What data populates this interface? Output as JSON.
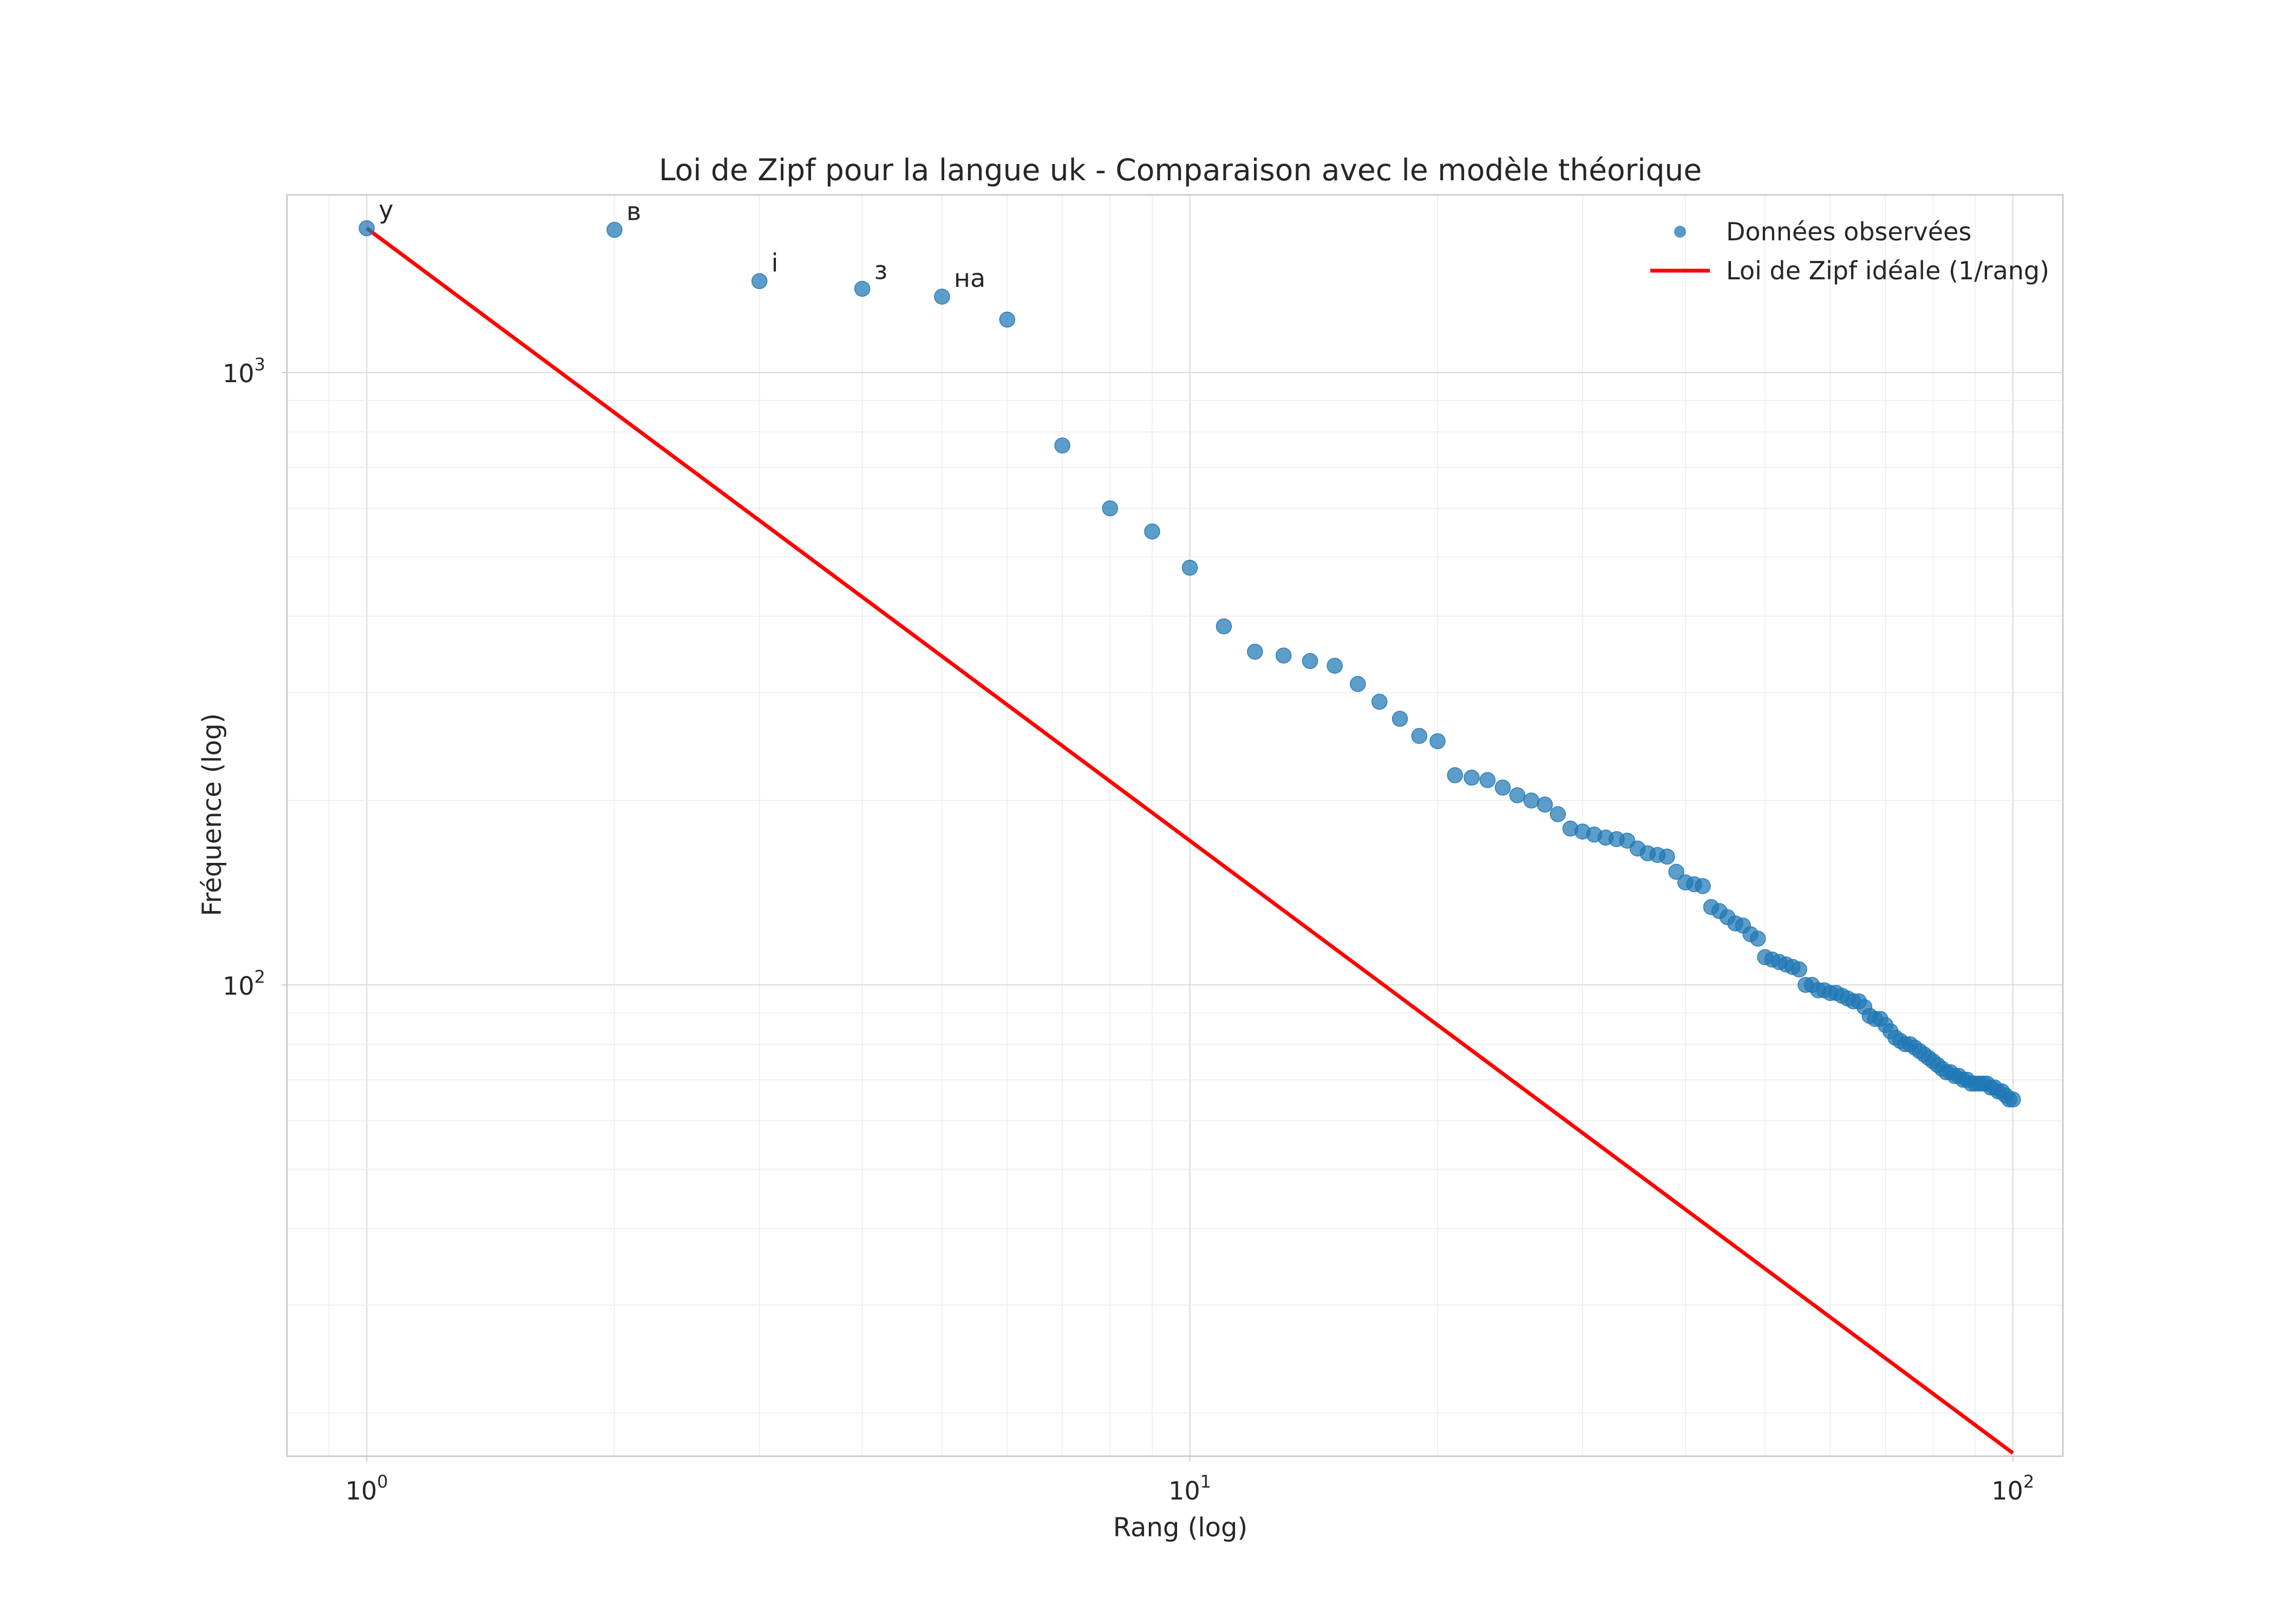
{
  "chart_data": {
    "type": "scatter",
    "title": "Loi de Zipf pour la langue uk - Comparaison avec le modèle théorique",
    "xlabel": "Rang (log)",
    "ylabel": "Fréquence (log)",
    "x_scale": "log",
    "y_scale": "log",
    "xlim": [
      0.8,
      115
    ],
    "ylim": [
      17,
      1950
    ],
    "grid": true,
    "legend_position": "top-right",
    "x_ticks": [
      {
        "base": "10",
        "exp": "0",
        "value": 1
      },
      {
        "base": "10",
        "exp": "1",
        "value": 10
      },
      {
        "base": "10",
        "exp": "2",
        "value": 100
      }
    ],
    "y_ticks": [
      {
        "base": "10",
        "exp": "2",
        "value": 100
      },
      {
        "base": "10",
        "exp": "3",
        "value": 1000
      }
    ],
    "series": [
      {
        "name": "Données observées",
        "kind": "scatter",
        "color": "#1f77b4",
        "x": [
          1,
          2,
          3,
          4,
          5,
          6,
          7,
          8,
          9,
          10,
          11,
          12,
          13,
          14,
          15,
          16,
          17,
          18,
          19,
          20,
          21,
          22,
          23,
          24,
          25,
          26,
          27,
          28,
          29,
          30,
          31,
          32,
          33,
          34,
          35,
          36,
          37,
          38,
          39,
          40,
          41,
          42,
          43,
          44,
          45,
          46,
          47,
          48,
          49,
          50,
          51,
          52,
          53,
          54,
          55,
          56,
          57,
          58,
          59,
          60,
          61,
          62,
          63,
          64,
          65,
          66,
          67,
          68,
          69,
          70,
          71,
          72,
          73,
          74,
          75,
          76,
          77,
          78,
          79,
          80,
          81,
          82,
          83,
          84,
          85,
          86,
          87,
          88,
          89,
          90,
          91,
          92,
          93,
          94,
          95,
          96,
          97,
          98,
          99,
          100
        ],
        "y": [
          1720,
          1710,
          1410,
          1370,
          1330,
          1220,
          760,
          600,
          550,
          480,
          385,
          350,
          345,
          338,
          332,
          310,
          290,
          272,
          255,
          250,
          220,
          218,
          216,
          210,
          204,
          200,
          197,
          190,
          180,
          178,
          176,
          174,
          173,
          172,
          167,
          164,
          163,
          162,
          153,
          147,
          146,
          145,
          134,
          132,
          129,
          126,
          125,
          121,
          119,
          111,
          110,
          109,
          108,
          107,
          106,
          100,
          100,
          98,
          98,
          97,
          97,
          96,
          95,
          94,
          94,
          92,
          89,
          88,
          88,
          86,
          84,
          82,
          81,
          80,
          80,
          79,
          78,
          77,
          76,
          75,
          74,
          73,
          72,
          72,
          71,
          71,
          70,
          70,
          69,
          69,
          69,
          69,
          69,
          68,
          68,
          67,
          67,
          66,
          65,
          65
        ],
        "labels": [
          {
            "x": 1,
            "y": 1720,
            "text": "у"
          },
          {
            "x": 2,
            "y": 1710,
            "text": "в"
          },
          {
            "x": 3,
            "y": 1410,
            "text": "і"
          },
          {
            "x": 4,
            "y": 1370,
            "text": "з"
          },
          {
            "x": 5,
            "y": 1330,
            "text": "на"
          }
        ]
      },
      {
        "name": "Loi de Zipf idéale (1/rang)",
        "kind": "line",
        "color": "#ff0000",
        "x": [
          1,
          100
        ],
        "y": [
          1720,
          17.2
        ]
      }
    ]
  }
}
